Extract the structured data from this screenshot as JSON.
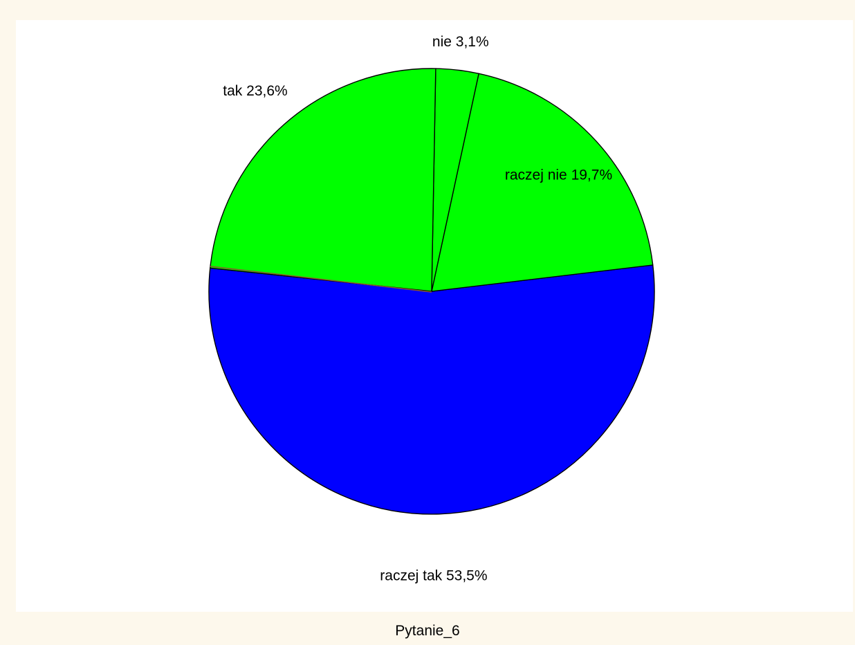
{
  "chart_data": {
    "type": "pie",
    "title": "Pytanie_6",
    "slices": [
      {
        "label": "raczej tak",
        "value": 53.5,
        "display": "raczej tak 53,5%",
        "color": "#0000ff"
      },
      {
        "label": "raczej nie",
        "value": 19.7,
        "display": "raczej nie 19,7%",
        "color": "#00ff00"
      },
      {
        "label": "nie",
        "value": 3.1,
        "display": "nie 3,1%",
        "color": "#00ff00"
      },
      {
        "label": "tak",
        "value": 23.6,
        "display": "tak 23,6%",
        "color": "#00ff00"
      }
    ],
    "legend": "none",
    "colors": {
      "background": "#fdf8ec",
      "plot_background": "#ffffff",
      "slice_border": "#000000",
      "separator": "#8b5a2b"
    }
  }
}
